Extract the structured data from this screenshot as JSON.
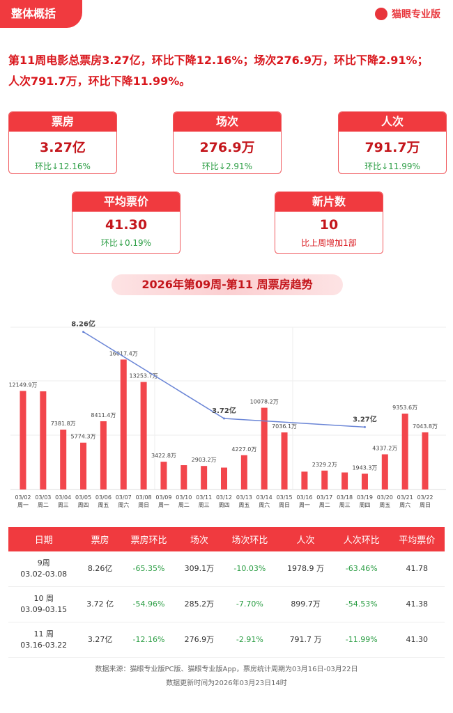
{
  "header": {
    "tab": "整体概括",
    "logo": "猫眼专业版"
  },
  "summary": "第11周电影总票房3.27亿，环比下降12.16%；场次276.9万，环比下降2.91%；人次791.7万，环比下降11.99%。",
  "cards": [
    {
      "title": "票房",
      "value": "3.27亿",
      "sub": "环比↓12.16%"
    },
    {
      "title": "场次",
      "value": "276.9万",
      "sub": "环比↓2.91%"
    },
    {
      "title": "人次",
      "value": "791.7万",
      "sub": "环比↓11.99%"
    },
    {
      "title": "平均票价",
      "value": "41.30",
      "sub": "环比↓0.19%"
    },
    {
      "title": "新片数",
      "value": "10",
      "sub": "比上周增加1部"
    }
  ],
  "chart_data": {
    "type": "bar",
    "title": "2026年第09周-第11 周票房趋势",
    "categories": [
      "03/02",
      "03/03",
      "03/04",
      "03/05",
      "03/06",
      "03/07",
      "03/08",
      "03/09",
      "03/10",
      "03/11",
      "03/12",
      "03/13",
      "03/14",
      "03/15",
      "03/16",
      "03/17",
      "03/18",
      "03/19",
      "03/20",
      "03/21",
      "03/22"
    ],
    "weekdays": [
      "周一",
      "周二",
      "周三",
      "周四",
      "周五",
      "周六",
      "周日",
      "周一",
      "周二",
      "周三",
      "周四",
      "周五",
      "周六",
      "周日",
      "周一",
      "周二",
      "周三",
      "周四",
      "周五",
      "周六",
      "周日"
    ],
    "ylim": [
      0,
      20000
    ],
    "y2lim": [
      0,
      8.5
    ],
    "series": [
      {
        "type": "bar",
        "color": "#f2464c",
        "values": [
          12149.9,
          12100,
          7381.8,
          5774.3,
          8411.4,
          16017.4,
          13253.7,
          3422.8,
          3000,
          2903.2,
          2700,
          4227.0,
          10078.2,
          7036.1,
          2200,
          2329.2,
          2100,
          1943.3,
          4337.2,
          9353.6,
          7043.8
        ],
        "value_labels": [
          "12149.9万",
          null,
          "7381.8万",
          "5774.3万",
          "8411.4万",
          "16017.4万",
          "13253.7万",
          "3422.8万",
          null,
          "2903.2万",
          null,
          "4227.0万",
          "10078.2万",
          "7036.1万",
          null,
          "2329.2万",
          null,
          "1943.3万",
          "4337.2万",
          "9353.6万",
          "7043.8万"
        ]
      },
      {
        "type": "line",
        "axis": "y2",
        "color": "#6a85d6",
        "x": [
          "03/05",
          "03/12",
          "03/19"
        ],
        "values": [
          8.26,
          3.72,
          3.27
        ],
        "value_labels": [
          "8.26亿",
          "3.72亿",
          "3.27亿"
        ]
      }
    ]
  },
  "table": {
    "columns": [
      "日期",
      "票房",
      "票房环比",
      "场次",
      "场次环比",
      "人次",
      "人次环比",
      "平均票价"
    ],
    "rows": [
      {
        "week": "9周",
        "range": "03.02-03.08",
        "cells": [
          "8.26亿",
          "-65.35%",
          "309.1万",
          "-10.03%",
          "1978.9 万",
          "-63.46%",
          "41.78"
        ]
      },
      {
        "week": "10 周",
        "range": "03.09-03.15",
        "cells": [
          "3.72 亿",
          "-54.96%",
          "285.2万",
          "-7.70%",
          "899.7万",
          "-54.53%",
          "41.38"
        ]
      },
      {
        "week": "11 周",
        "range": "03.16-03.22",
        "cells": [
          "3.27亿",
          "-12.16%",
          "276.9万",
          "-2.91%",
          "791.7 万",
          "-11.99%",
          "41.30"
        ]
      }
    ]
  },
  "footer": [
    "数据来源：猫眼专业版PC版、猫眼专业版App，票房统计周期为03月16日-03月22日",
    "数据更新时间为2026年03月23日14时"
  ]
}
